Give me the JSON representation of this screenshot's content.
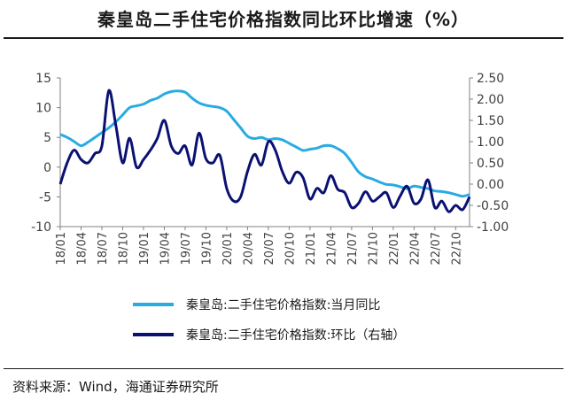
{
  "title": "秦皇岛二手住宅价格指数同比环比增速（%）",
  "source": "资料来源：Wind，海通证券研究所",
  "colors": {
    "yoy": "#29ABE2",
    "mom": "#0A1172",
    "axis": "#808080",
    "text": "#404040"
  },
  "chart_data": {
    "type": "line",
    "x": [
      "18/01",
      "18/02",
      "18/03",
      "18/04",
      "18/05",
      "18/06",
      "18/07",
      "18/08",
      "18/09",
      "18/10",
      "18/11",
      "18/12",
      "19/01",
      "19/02",
      "19/03",
      "19/04",
      "19/05",
      "19/06",
      "19/07",
      "19/08",
      "19/09",
      "19/10",
      "19/11",
      "19/12",
      "20/01",
      "20/02",
      "20/03",
      "20/04",
      "20/05",
      "20/06",
      "20/07",
      "20/08",
      "20/09",
      "20/10",
      "20/11",
      "20/12",
      "21/01",
      "21/02",
      "21/03",
      "21/04",
      "21/05",
      "21/06",
      "21/07",
      "21/08",
      "21/09",
      "21/10",
      "21/11",
      "21/12",
      "22/01",
      "22/02",
      "22/03",
      "22/04",
      "22/05",
      "22/06",
      "22/07",
      "22/08",
      "22/09",
      "22/10",
      "22/11",
      "22/12"
    ],
    "x_tick_labels": [
      "18/01",
      "18/04",
      "18/07",
      "18/10",
      "19/01",
      "19/04",
      "19/07",
      "19/10",
      "20/01",
      "20/04",
      "20/07",
      "20/10",
      "21/01",
      "21/04",
      "21/07",
      "21/10",
      "22/01",
      "22/04",
      "22/07",
      "22/10"
    ],
    "left_axis": {
      "ylim": [
        -10,
        15
      ],
      "ticks": [
        "15",
        "10",
        "5",
        "0",
        "-5",
        "-10"
      ],
      "tick_values": [
        15,
        10,
        5,
        0,
        -5,
        -10
      ]
    },
    "right_axis": {
      "ylim": [
        -1.0,
        2.5
      ],
      "ticks": [
        "2.50",
        "2.00",
        "1.50",
        "1.00",
        "0.50",
        "0.00",
        "-0.50",
        "-1.00"
      ],
      "tick_values": [
        2.5,
        2.0,
        1.5,
        1.0,
        0.5,
        0.0,
        -0.5,
        -1.0
      ]
    },
    "grid": false,
    "legend_position": "bottom",
    "series": [
      {
        "name": "秦皇岛:二手住宅价格指数:当月同比",
        "axis": "left",
        "values": [
          5.5,
          5.0,
          4.3,
          3.6,
          4.2,
          5.0,
          5.8,
          6.6,
          7.6,
          8.8,
          10.0,
          10.3,
          10.6,
          11.2,
          11.6,
          12.3,
          12.7,
          12.8,
          12.6,
          11.6,
          10.8,
          10.4,
          10.2,
          10.0,
          9.4,
          8.0,
          6.6,
          5.2,
          4.8,
          5.0,
          4.6,
          4.8,
          4.6,
          4.0,
          3.4,
          2.8,
          3.0,
          3.2,
          3.6,
          3.6,
          3.1,
          2.3,
          0.8,
          -0.8,
          -1.6,
          -2.0,
          -2.5,
          -2.9,
          -3.0,
          -3.3,
          -3.6,
          -3.2,
          -3.4,
          -3.6,
          -4.0,
          -4.1,
          -4.3,
          -4.6,
          -4.9,
          -4.6
        ]
      },
      {
        "name": "秦皇岛:二手住宅价格指数:环比（右轴）",
        "axis": "right",
        "values": [
          0.0,
          0.5,
          0.8,
          0.58,
          0.5,
          0.72,
          0.9,
          2.2,
          1.4,
          0.5,
          1.08,
          0.4,
          0.58,
          0.8,
          1.08,
          1.5,
          0.9,
          0.72,
          0.9,
          0.45,
          1.2,
          0.6,
          0.5,
          0.68,
          -0.1,
          -0.4,
          -0.3,
          0.3,
          0.7,
          0.45,
          1.0,
          0.8,
          0.3,
          0.02,
          0.28,
          0.15,
          -0.35,
          -0.1,
          -0.2,
          0.2,
          -0.12,
          -0.2,
          -0.55,
          -0.45,
          -0.18,
          -0.4,
          -0.3,
          -0.2,
          -0.55,
          -0.28,
          -0.05,
          -0.45,
          -0.35,
          0.1,
          -0.55,
          -0.4,
          -0.65,
          -0.5,
          -0.6,
          -0.3
        ]
      }
    ]
  }
}
